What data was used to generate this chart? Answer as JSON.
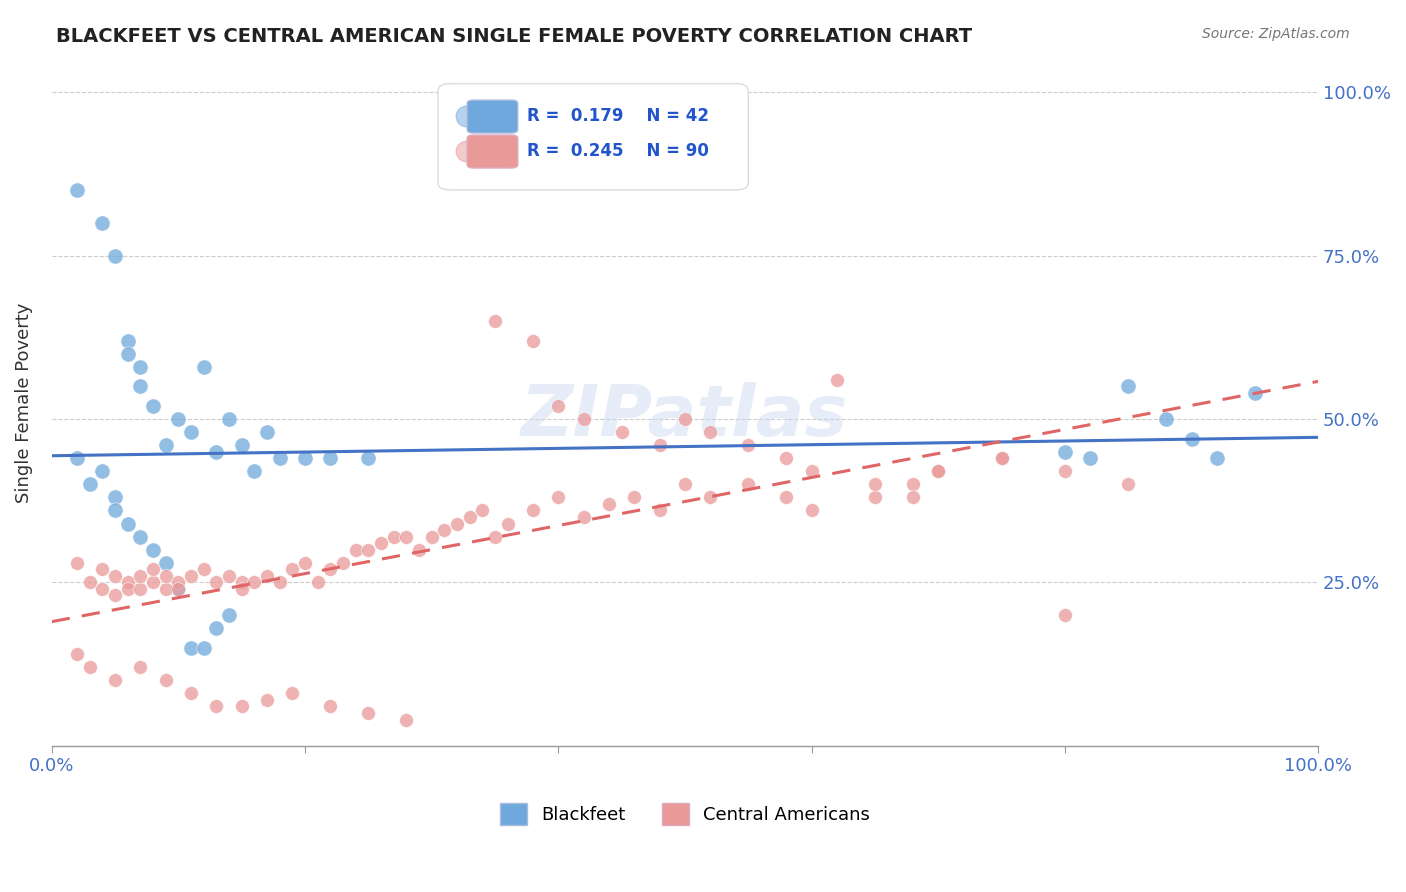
{
  "title": "BLACKFEET VS CENTRAL AMERICAN SINGLE FEMALE POVERTY CORRELATION CHART",
  "source": "Source: ZipAtlas.com",
  "ylabel": "Single Female Poverty",
  "ytick_labels": [
    "25.0%",
    "50.0%",
    "75.0%",
    "100.0%"
  ],
  "ytick_positions": [
    0.25,
    0.5,
    0.75,
    1.0
  ],
  "xlim": [
    0.0,
    1.0
  ],
  "ylim": [
    0.0,
    1.05
  ],
  "legend_label_1": "Blackfeet",
  "legend_label_2": "Central Americans",
  "r1": "0.179",
  "n1": "42",
  "r2": "0.245",
  "n2": "90",
  "color_blue": "#6fa8dc",
  "color_pink": "#ea9999",
  "color_blue_line": "#4472c4",
  "color_pink_line": "#e06666",
  "color_axis_labels": "#4472c4",
  "background_color": "#ffffff",
  "watermark": "ZIPatlas",
  "blue_scatter_x": [
    0.02,
    0.04,
    0.05,
    0.06,
    0.06,
    0.07,
    0.07,
    0.08,
    0.09,
    0.1,
    0.11,
    0.12,
    0.13,
    0.14,
    0.15,
    0.16,
    0.17,
    0.18,
    0.2,
    0.22,
    0.02,
    0.03,
    0.04,
    0.05,
    0.05,
    0.06,
    0.07,
    0.08,
    0.09,
    0.1,
    0.11,
    0.12,
    0.13,
    0.14,
    0.25,
    0.85,
    0.88,
    0.9,
    0.92,
    0.95,
    0.8,
    0.82
  ],
  "blue_scatter_y": [
    0.85,
    0.8,
    0.75,
    0.62,
    0.6,
    0.55,
    0.58,
    0.52,
    0.46,
    0.5,
    0.48,
    0.58,
    0.45,
    0.5,
    0.46,
    0.42,
    0.48,
    0.44,
    0.44,
    0.44,
    0.44,
    0.4,
    0.42,
    0.38,
    0.36,
    0.34,
    0.32,
    0.3,
    0.28,
    0.24,
    0.15,
    0.15,
    0.18,
    0.2,
    0.44,
    0.55,
    0.5,
    0.47,
    0.44,
    0.54,
    0.45,
    0.44
  ],
  "pink_scatter_x": [
    0.02,
    0.03,
    0.04,
    0.04,
    0.05,
    0.05,
    0.06,
    0.06,
    0.07,
    0.07,
    0.08,
    0.08,
    0.09,
    0.09,
    0.1,
    0.1,
    0.11,
    0.12,
    0.13,
    0.14,
    0.15,
    0.15,
    0.16,
    0.17,
    0.18,
    0.19,
    0.2,
    0.21,
    0.22,
    0.23,
    0.24,
    0.25,
    0.26,
    0.27,
    0.28,
    0.29,
    0.3,
    0.31,
    0.32,
    0.33,
    0.34,
    0.35,
    0.36,
    0.38,
    0.4,
    0.42,
    0.44,
    0.46,
    0.48,
    0.5,
    0.52,
    0.55,
    0.58,
    0.6,
    0.62,
    0.65,
    0.68,
    0.7,
    0.75,
    0.8,
    0.35,
    0.38,
    0.4,
    0.42,
    0.45,
    0.48,
    0.5,
    0.52,
    0.55,
    0.58,
    0.6,
    0.65,
    0.68,
    0.7,
    0.75,
    0.8,
    0.85,
    0.02,
    0.03,
    0.05,
    0.07,
    0.09,
    0.11,
    0.13,
    0.15,
    0.17,
    0.19,
    0.22,
    0.25,
    0.28
  ],
  "pink_scatter_y": [
    0.28,
    0.25,
    0.27,
    0.24,
    0.26,
    0.23,
    0.25,
    0.24,
    0.24,
    0.26,
    0.25,
    0.27,
    0.24,
    0.26,
    0.25,
    0.24,
    0.26,
    0.27,
    0.25,
    0.26,
    0.25,
    0.24,
    0.25,
    0.26,
    0.25,
    0.27,
    0.28,
    0.25,
    0.27,
    0.28,
    0.3,
    0.3,
    0.31,
    0.32,
    0.32,
    0.3,
    0.32,
    0.33,
    0.34,
    0.35,
    0.36,
    0.32,
    0.34,
    0.36,
    0.38,
    0.35,
    0.37,
    0.38,
    0.36,
    0.4,
    0.38,
    0.4,
    0.38,
    0.42,
    0.56,
    0.38,
    0.4,
    0.42,
    0.44,
    0.2,
    0.65,
    0.62,
    0.52,
    0.5,
    0.48,
    0.46,
    0.5,
    0.48,
    0.46,
    0.44,
    0.36,
    0.4,
    0.38,
    0.42,
    0.44,
    0.42,
    0.4,
    0.14,
    0.12,
    0.1,
    0.12,
    0.1,
    0.08,
    0.06,
    0.06,
    0.07,
    0.08,
    0.06,
    0.05,
    0.04
  ]
}
